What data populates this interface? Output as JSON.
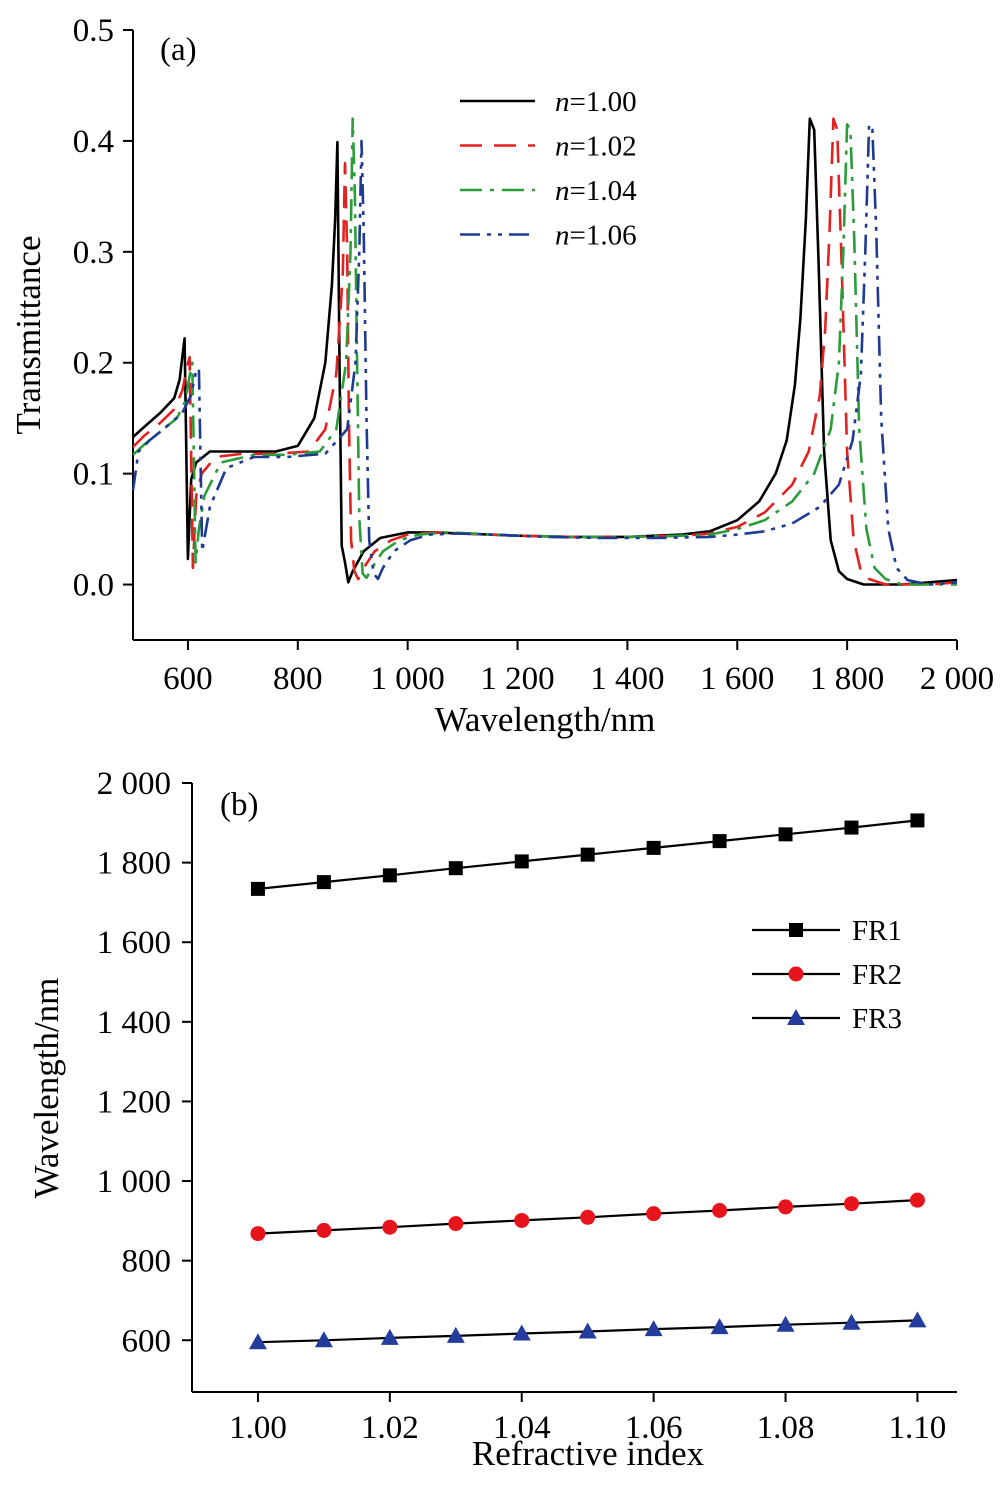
{
  "chart_data": [
    {
      "panel_label": "(a)",
      "type": "line",
      "xlabel": "Wavelength/nm",
      "ylabel": "Transmittance",
      "xlim": [
        500,
        2000
      ],
      "ylim": [
        -0.05,
        0.5
      ],
      "x_ticks": [
        600,
        800,
        1000,
        1200,
        1400,
        1600,
        1800,
        2000
      ],
      "x_tick_labels": [
        "600",
        "800",
        "1 000",
        "1 200",
        "1 400",
        "1 600",
        "1 800",
        "2 000"
      ],
      "y_ticks": [
        0.0,
        0.1,
        0.2,
        0.3,
        0.4,
        0.5
      ],
      "y_tick_labels": [
        "0.0",
        "0.1",
        "0.2",
        "0.3",
        "0.4",
        "0.5"
      ],
      "grid": false,
      "legend_position": "top-center",
      "series": [
        {
          "name": "n=1.00",
          "legend_var": "n",
          "legend_val": "=1.00",
          "color": "#000000",
          "dash": "solid",
          "x": [
            500,
            520,
            550,
            575,
            585,
            590,
            594,
            600,
            606,
            615,
            640,
            700,
            760,
            800,
            830,
            850,
            862,
            868,
            872,
            876,
            880,
            886,
            892,
            900,
            920,
            950,
            1000,
            1050,
            1100,
            1200,
            1300,
            1400,
            1500,
            1550,
            1600,
            1640,
            1670,
            1690,
            1705,
            1715,
            1725,
            1732,
            1740,
            1748,
            1758,
            1770,
            1785,
            1800,
            1830,
            1900,
            2000
          ],
          "y": [
            0.133,
            0.142,
            0.155,
            0.168,
            0.185,
            0.206,
            0.222,
            0.023,
            0.095,
            0.11,
            0.12,
            0.12,
            0.12,
            0.125,
            0.15,
            0.2,
            0.27,
            0.33,
            0.399,
            0.2,
            0.035,
            0.02,
            0.002,
            0.012,
            0.03,
            0.042,
            0.047,
            0.047,
            0.046,
            0.044,
            0.043,
            0.043,
            0.045,
            0.048,
            0.058,
            0.075,
            0.1,
            0.13,
            0.18,
            0.24,
            0.33,
            0.42,
            0.41,
            0.29,
            0.12,
            0.04,
            0.012,
            0.005,
            0.0,
            0.0,
            0.004
          ]
        },
        {
          "name": "n=1.02",
          "legend_var": "n",
          "legend_val": "=1.02",
          "color": "#e32121",
          "dash": "22,12",
          "x": [
            500,
            520,
            550,
            575,
            590,
            598,
            603,
            609,
            615,
            625,
            650,
            700,
            760,
            820,
            850,
            870,
            882,
            886,
            890,
            893,
            897,
            903,
            910,
            920,
            940,
            970,
            1000,
            1050,
            1100,
            1200,
            1300,
            1400,
            1500,
            1550,
            1600,
            1650,
            1700,
            1730,
            1750,
            1760,
            1768,
            1775,
            1782,
            1790,
            1800,
            1812,
            1825,
            1840,
            1870,
            1950,
            2000
          ],
          "y": [
            0.124,
            0.134,
            0.146,
            0.158,
            0.175,
            0.195,
            0.205,
            0.015,
            0.08,
            0.1,
            0.115,
            0.118,
            0.118,
            0.12,
            0.14,
            0.19,
            0.28,
            0.38,
            0.3,
            0.15,
            0.04,
            0.012,
            0.005,
            0.015,
            0.03,
            0.04,
            0.045,
            0.047,
            0.046,
            0.044,
            0.043,
            0.043,
            0.044,
            0.046,
            0.052,
            0.065,
            0.09,
            0.12,
            0.17,
            0.23,
            0.32,
            0.42,
            0.41,
            0.29,
            0.12,
            0.04,
            0.012,
            0.005,
            0.0,
            0.0,
            0.002
          ]
        },
        {
          "name": "n=1.04",
          "legend_var": "n",
          "legend_val": "=1.04",
          "color": "#2a9d3a",
          "dash": "22,8,4,8",
          "x": [
            500,
            520,
            550,
            580,
            595,
            603,
            608,
            614,
            620,
            630,
            660,
            720,
            780,
            840,
            870,
            888,
            896,
            900,
            904,
            908,
            912,
            918,
            925,
            935,
            955,
            985,
            1020,
            1070,
            1120,
            1200,
            1300,
            1400,
            1500,
            1550,
            1600,
            1650,
            1700,
            1740,
            1770,
            1785,
            1793,
            1800,
            1806,
            1813,
            1822,
            1835,
            1850,
            1870,
            1900,
            1950,
            2000
          ],
          "y": [
            0.117,
            0.126,
            0.138,
            0.15,
            0.165,
            0.188,
            0.2,
            0.02,
            0.05,
            0.08,
            0.11,
            0.117,
            0.117,
            0.12,
            0.14,
            0.2,
            0.3,
            0.42,
            0.35,
            0.2,
            0.06,
            0.01,
            0.006,
            0.015,
            0.03,
            0.04,
            0.045,
            0.047,
            0.046,
            0.044,
            0.043,
            0.043,
            0.044,
            0.045,
            0.05,
            0.058,
            0.075,
            0.1,
            0.14,
            0.2,
            0.3,
            0.415,
            0.41,
            0.31,
            0.14,
            0.05,
            0.015,
            0.005,
            0.0,
            0.0,
            0.0
          ]
        },
        {
          "name": "n=1.06",
          "legend_var": "n",
          "legend_val": "=1.06",
          "color": "#1f3a93",
          "dash": "20,7,4,7,4,7",
          "x": [
            500,
            510,
            530,
            560,
            590,
            605,
            614,
            620,
            626,
            640,
            670,
            720,
            780,
            850,
            890,
            905,
            912,
            916,
            920,
            925,
            930,
            938,
            946,
            955,
            975,
            1005,
            1040,
            1090,
            1150,
            1250,
            1350,
            1450,
            1550,
            1600,
            1650,
            1700,
            1750,
            1785,
            1810,
            1825,
            1833,
            1840,
            1846,
            1853,
            1862,
            1875,
            1890,
            1910,
            1950,
            2000
          ],
          "y": [
            0.085,
            0.12,
            0.13,
            0.142,
            0.155,
            0.17,
            0.19,
            0.195,
            0.03,
            0.07,
            0.105,
            0.115,
            0.115,
            0.118,
            0.14,
            0.2,
            0.3,
            0.4,
            0.32,
            0.15,
            0.04,
            0.01,
            0.005,
            0.015,
            0.03,
            0.04,
            0.045,
            0.046,
            0.045,
            0.043,
            0.042,
            0.042,
            0.043,
            0.045,
            0.048,
            0.055,
            0.07,
            0.09,
            0.13,
            0.19,
            0.3,
            0.415,
            0.41,
            0.32,
            0.15,
            0.05,
            0.015,
            0.004,
            0.0,
            0.002
          ]
        }
      ]
    },
    {
      "panel_label": "(b)",
      "type": "line",
      "xlabel": "Refractive index",
      "ylabel": "Wavelength/nm",
      "xlim": [
        0.99,
        1.106
      ],
      "ylim": [
        470,
        2000
      ],
      "x_ticks": [
        1.0,
        1.02,
        1.04,
        1.06,
        1.08,
        1.1
      ],
      "x_tick_labels": [
        "1.00",
        "1.02",
        "1.04",
        "1.06",
        "1.08",
        "1.10"
      ],
      "y_ticks": [
        600,
        800,
        1000,
        1200,
        1400,
        1600,
        1800,
        2000
      ],
      "y_tick_labels": [
        "600",
        "800",
        "1 000",
        "1 200",
        "1 400",
        "1 600",
        "1 800",
        "2 000"
      ],
      "grid": false,
      "legend_position": "right",
      "x": [
        1.0,
        1.01,
        1.02,
        1.03,
        1.04,
        1.05,
        1.06,
        1.07,
        1.08,
        1.09,
        1.1
      ],
      "series": [
        {
          "name": "FR1",
          "marker": "square",
          "marker_color": "#000000",
          "values": [
            1734,
            1751,
            1768,
            1786,
            1803,
            1820,
            1837,
            1854,
            1871,
            1888,
            1906
          ]
        },
        {
          "name": "FR2",
          "marker": "circle",
          "marker_color": "#e8141b",
          "values": [
            868,
            876,
            884,
            893,
            901,
            909,
            918,
            926,
            935,
            943,
            952
          ]
        },
        {
          "name": "FR3",
          "marker": "triangle",
          "marker_color": "#243c9b",
          "values": [
            595,
            600,
            606,
            611,
            617,
            622,
            628,
            633,
            639,
            644,
            650
          ]
        }
      ]
    }
  ]
}
